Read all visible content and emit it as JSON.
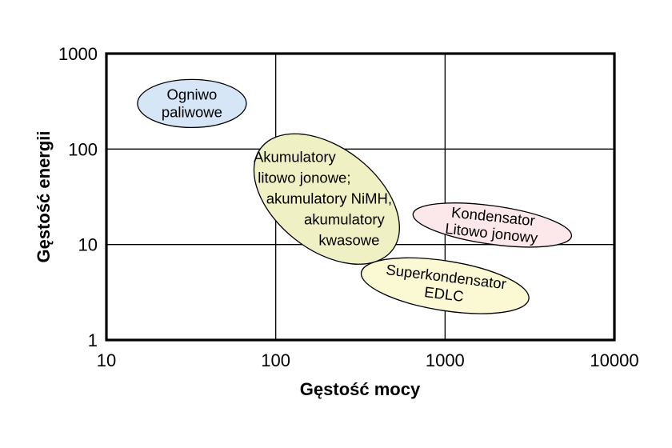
{
  "chart_data": {
    "type": "scatter",
    "xlabel": "Gęstość mocy",
    "ylabel": "Gęstość energii",
    "x_scale": "log",
    "y_scale": "log",
    "xlim": [
      10,
      10000
    ],
    "ylim": [
      1,
      1000
    ],
    "x_ticks": [
      "10",
      "100",
      "1000",
      "10000"
    ],
    "y_ticks": [
      "1",
      "10",
      "100",
      "1000"
    ],
    "grid": true,
    "regions": [
      {
        "lines": [
          "Ogniwo",
          "paliwowe"
        ],
        "center": [
          32,
          300
        ],
        "color": "#d6e6f7",
        "align": "center"
      },
      {
        "lines": [
          "Akumulatory",
          "litowo jonowe;",
          "akumulatory NiMH,",
          "akumulatory",
          "kwasowe"
        ],
        "center": [
          200,
          30
        ],
        "color": "#eff1c4",
        "align": "mixed"
      },
      {
        "lines": [
          "Kondensator",
          "Litowo jonowy"
        ],
        "center": [
          1900,
          16
        ],
        "color": "#fce7ea",
        "align": "center"
      },
      {
        "lines": [
          "Superkondensator",
          "EDLC"
        ],
        "center": [
          1000,
          3.7
        ],
        "color": "#fbf8d4",
        "align": "center"
      }
    ]
  }
}
